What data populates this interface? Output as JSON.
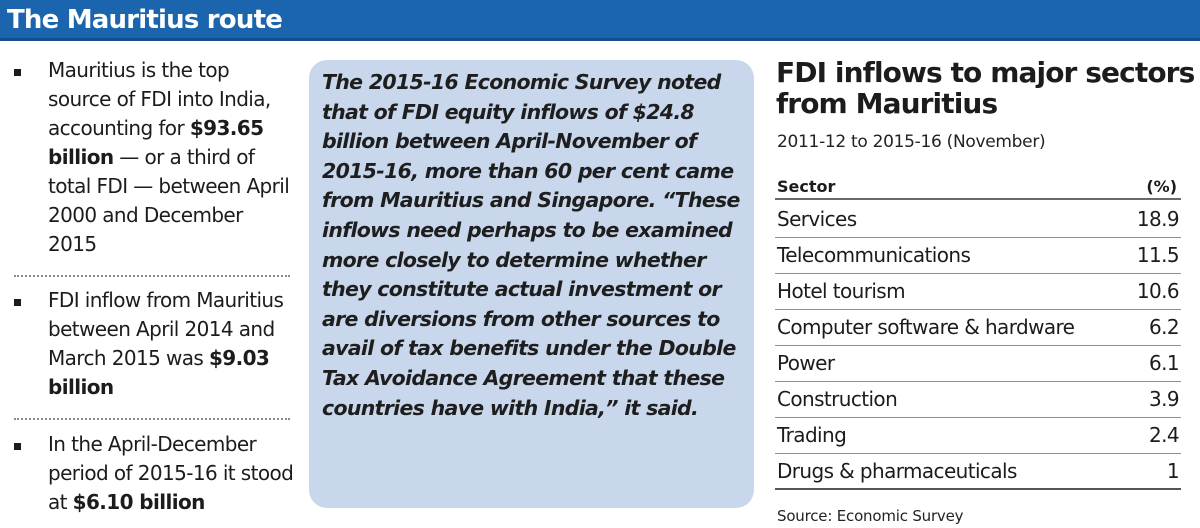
{
  "header": {
    "title": "The Mauritius route"
  },
  "bullets": [
    {
      "parts": [
        "Mauritius is the top source of FDI into India, accounting for ",
        "$93.65 billion",
        " — or a third of total FDI — between April 2000 and December 2015"
      ]
    },
    {
      "parts": [
        "FDI inflow from Mauritius between April 2014 and March 2015 was ",
        "$9.03 billion",
        ""
      ]
    },
    {
      "parts": [
        "In the April-December period of 2015-16 it stood at ",
        "$6.10 billion",
        ""
      ]
    }
  ],
  "quote": {
    "text": "The 2015-16 Economic Survey noted that of FDI equity inflows of $24.8 billion between April-November of 2015-16, more than 60 per cent came from Mauritius and Singapore. “These inflows need perhaps to be examined more closely to determine whether they constitute actual investment or are diversions from other sources to avail of tax benefits under the Double Tax Avoidance Agreement that these countries have with India,” it said."
  },
  "table": {
    "title": "FDI inflows to major sectors from Mauritius",
    "subtitle": "2011-12 to 2015-16 (November)",
    "col_sector": "Sector",
    "col_pct": "(%)",
    "rows": [
      {
        "sector": "Services",
        "pct": "18.9"
      },
      {
        "sector": "Telecommunications",
        "pct": "11.5"
      },
      {
        "sector": "Hotel tourism",
        "pct": "10.6"
      },
      {
        "sector": "Computer software & hardware",
        "pct": "6.2"
      },
      {
        "sector": "Power",
        "pct": "6.1"
      },
      {
        "sector": "Construction",
        "pct": "3.9"
      },
      {
        "sector": "Trading",
        "pct": "2.4"
      },
      {
        "sector": "Drugs & pharmaceuticals",
        "pct": "1"
      }
    ],
    "source": "Source: Economic Survey"
  },
  "colors": {
    "header_bg": "#1b64ae",
    "quote_bg": "#c9d7ec",
    "text": "#1c1c1c"
  }
}
